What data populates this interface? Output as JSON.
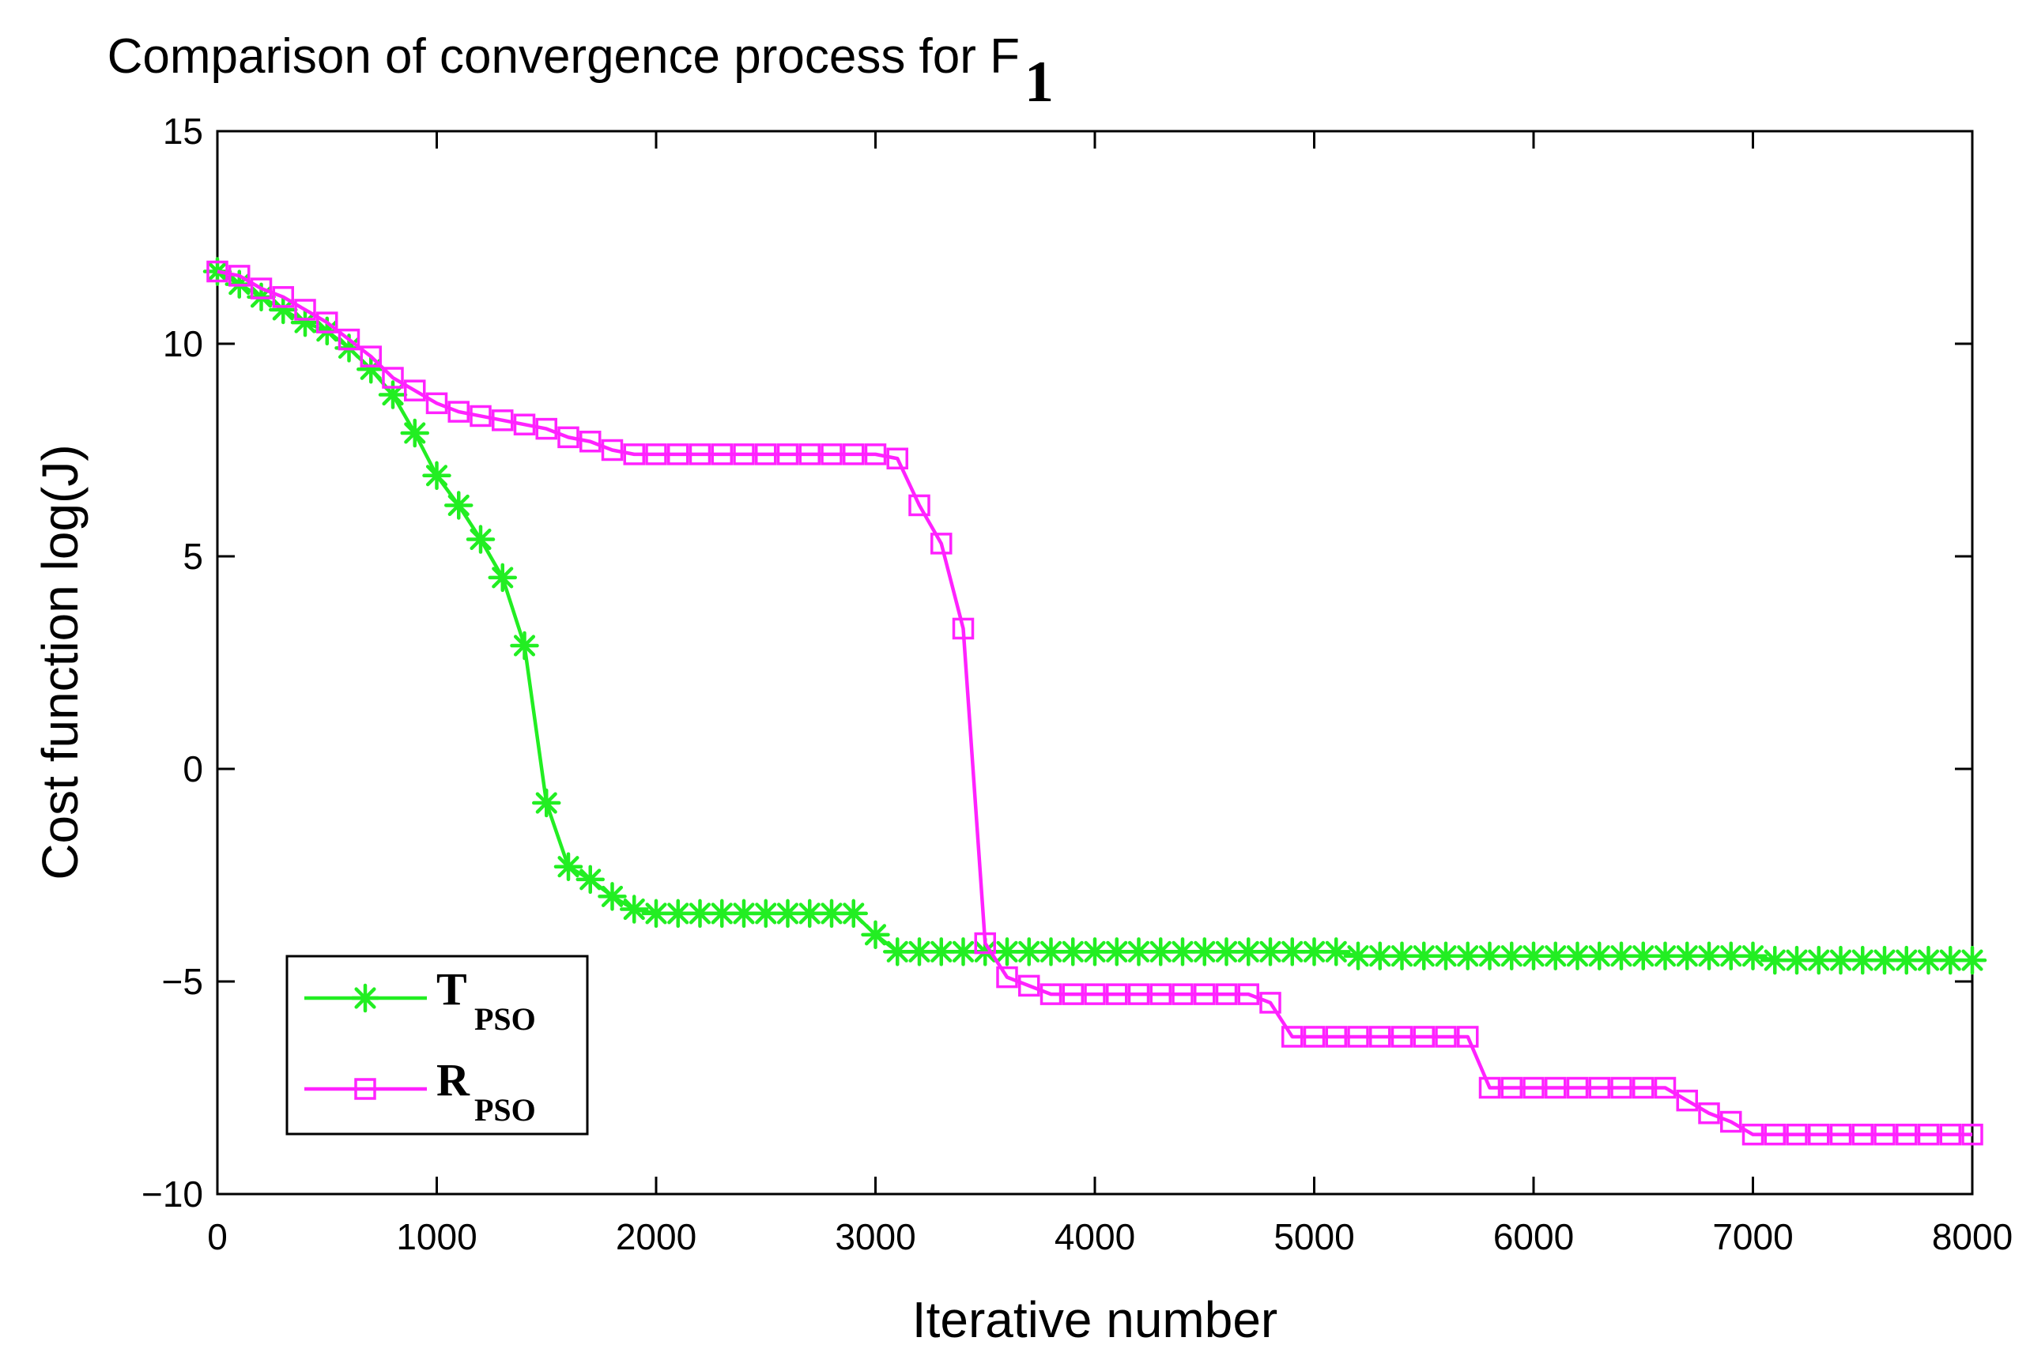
{
  "chart_data": {
    "type": "line",
    "title": "Comparison of convergence process for F",
    "title_subscript": "1",
    "xlabel": "Iterative number",
    "ylabel": "Cost function log(J)",
    "xlim": [
      0,
      8000
    ],
    "ylim": [
      -10,
      15
    ],
    "xticks": [
      0,
      1000,
      2000,
      3000,
      4000,
      5000,
      6000,
      7000,
      8000
    ],
    "xtick_labels": [
      "0",
      "1000",
      "2000",
      "3000",
      "4000",
      "5000",
      "6000",
      "7000",
      "8000"
    ],
    "yticks": [
      -10,
      -5,
      0,
      5,
      10,
      15
    ],
    "ytick_labels": [
      "−10",
      "−5",
      "0",
      "5",
      "10",
      "15"
    ],
    "grid": false,
    "legend_position": "bottom-left",
    "series": [
      {
        "name": "T",
        "name_subscript": "PSO",
        "color": "#22ee22",
        "marker": "asterisk",
        "x": [
          0,
          100,
          200,
          300,
          400,
          500,
          600,
          700,
          800,
          900,
          1000,
          1100,
          1200,
          1300,
          1400,
          1500,
          1600,
          1700,
          1800,
          1900,
          2000,
          2100,
          2200,
          2300,
          2400,
          2500,
          2600,
          2700,
          2800,
          2900,
          3000,
          3100,
          3200,
          3300,
          3400,
          3500,
          3600,
          3700,
          3800,
          3900,
          4000,
          4100,
          4200,
          4300,
          4400,
          4500,
          4600,
          4700,
          4800,
          4900,
          5000,
          5100,
          5200,
          5300,
          5400,
          5500,
          5600,
          5700,
          5800,
          5900,
          6000,
          6100,
          6200,
          6300,
          6400,
          6500,
          6600,
          6700,
          6800,
          6900,
          7000,
          7100,
          7200,
          7300,
          7400,
          7500,
          7600,
          7700,
          7800,
          7900,
          8000
        ],
        "y": [
          11.7,
          11.4,
          11.1,
          10.8,
          10.5,
          10.3,
          9.9,
          9.4,
          8.8,
          7.9,
          6.9,
          6.2,
          5.4,
          4.5,
          2.9,
          -0.8,
          -2.3,
          -2.6,
          -3.0,
          -3.3,
          -3.4,
          -3.4,
          -3.4,
          -3.4,
          -3.4,
          -3.4,
          -3.4,
          -3.4,
          -3.4,
          -3.4,
          -3.9,
          -4.3,
          -4.3,
          -4.3,
          -4.3,
          -4.3,
          -4.3,
          -4.3,
          -4.3,
          -4.3,
          -4.3,
          -4.3,
          -4.3,
          -4.3,
          -4.3,
          -4.3,
          -4.3,
          -4.3,
          -4.3,
          -4.3,
          -4.3,
          -4.3,
          -4.4,
          -4.4,
          -4.4,
          -4.4,
          -4.4,
          -4.4,
          -4.4,
          -4.4,
          -4.4,
          -4.4,
          -4.4,
          -4.4,
          -4.4,
          -4.4,
          -4.4,
          -4.4,
          -4.4,
          -4.4,
          -4.4,
          -4.5,
          -4.5,
          -4.5,
          -4.5,
          -4.5,
          -4.5,
          -4.5,
          -4.5,
          -4.5,
          -4.5
        ]
      },
      {
        "name": "R",
        "name_subscript": "PSO",
        "color": "#ff22ff",
        "marker": "square",
        "x": [
          0,
          100,
          200,
          300,
          400,
          500,
          600,
          700,
          800,
          900,
          1000,
          1100,
          1200,
          1300,
          1400,
          1500,
          1600,
          1700,
          1800,
          1900,
          2000,
          2100,
          2200,
          2300,
          2400,
          2500,
          2600,
          2700,
          2800,
          2900,
          3000,
          3100,
          3200,
          3300,
          3400,
          3500,
          3600,
          3700,
          3800,
          3900,
          4000,
          4100,
          4200,
          4300,
          4400,
          4500,
          4600,
          4700,
          4800,
          4900,
          5000,
          5100,
          5200,
          5300,
          5400,
          5500,
          5600,
          5700,
          5800,
          5900,
          6000,
          6100,
          6200,
          6300,
          6400,
          6500,
          6600,
          6700,
          6800,
          6900,
          7000,
          7100,
          7200,
          7300,
          7400,
          7500,
          7600,
          7700,
          7800,
          7900,
          8000
        ],
        "y": [
          11.7,
          11.6,
          11.3,
          11.1,
          10.8,
          10.5,
          10.1,
          9.7,
          9.2,
          8.9,
          8.6,
          8.4,
          8.3,
          8.2,
          8.1,
          8.0,
          7.8,
          7.7,
          7.5,
          7.4,
          7.4,
          7.4,
          7.4,
          7.4,
          7.4,
          7.4,
          7.4,
          7.4,
          7.4,
          7.4,
          7.4,
          7.3,
          6.2,
          5.3,
          3.3,
          -4.1,
          -4.9,
          -5.1,
          -5.3,
          -5.3,
          -5.3,
          -5.3,
          -5.3,
          -5.3,
          -5.3,
          -5.3,
          -5.3,
          -5.3,
          -5.5,
          -6.3,
          -6.3,
          -6.3,
          -6.3,
          -6.3,
          -6.3,
          -6.3,
          -6.3,
          -6.3,
          -7.5,
          -7.5,
          -7.5,
          -7.5,
          -7.5,
          -7.5,
          -7.5,
          -7.5,
          -7.5,
          -7.8,
          -8.1,
          -8.3,
          -8.6,
          -8.6,
          -8.6,
          -8.6,
          -8.6,
          -8.6,
          -8.6,
          -8.6,
          -8.6,
          -8.6,
          -8.6
        ]
      }
    ]
  }
}
